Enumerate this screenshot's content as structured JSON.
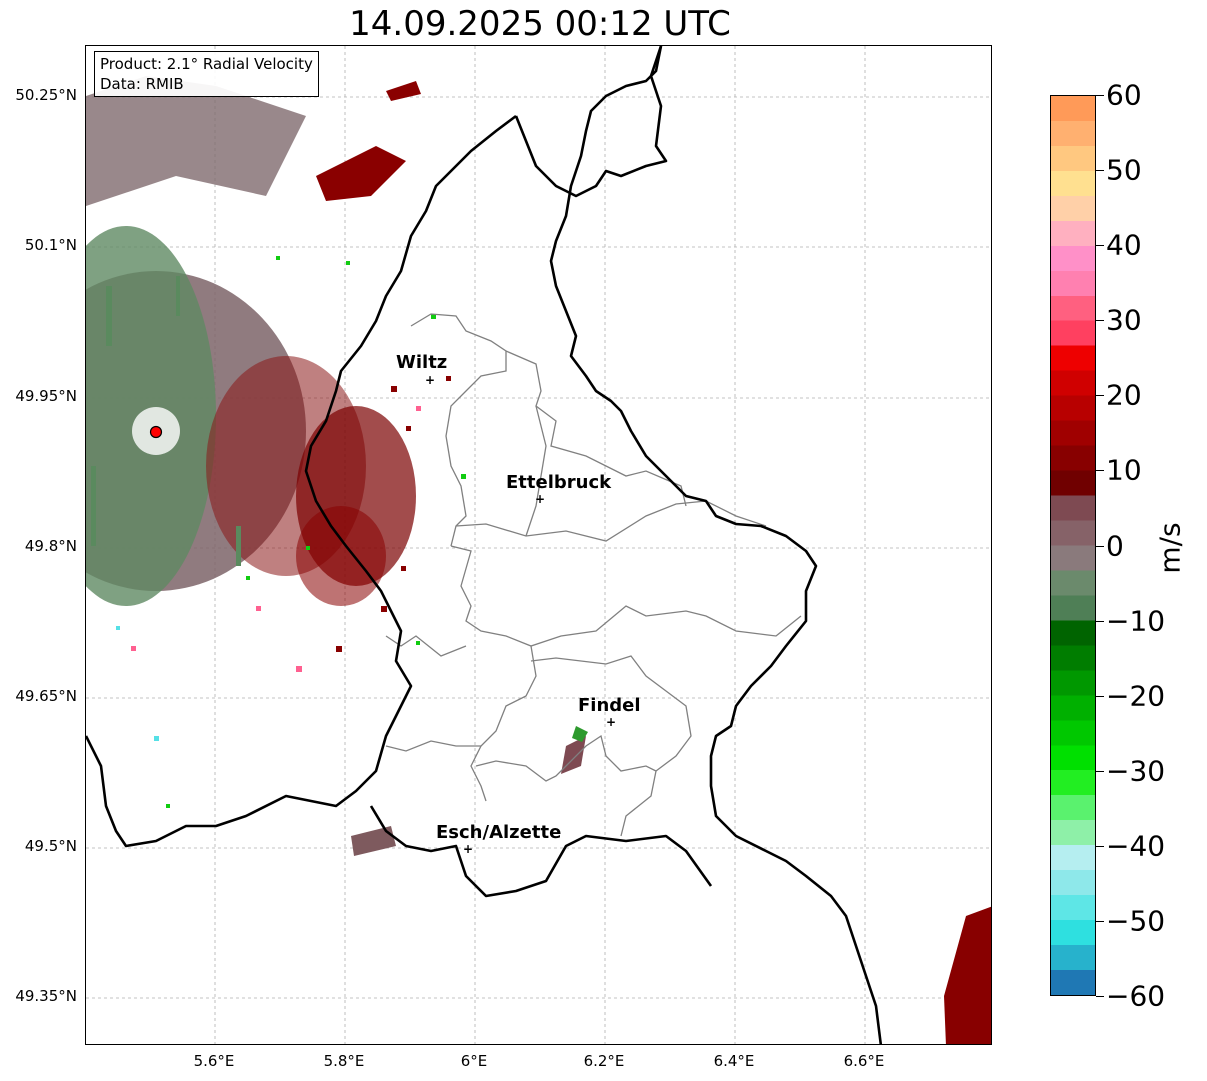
{
  "title": "14.09.2025 00:12 UTC",
  "info_box": {
    "product": "Product: 2.1° Radial Velocity",
    "data": "Data: RMIB"
  },
  "axes": {
    "lat_labels": [
      "50.25°N",
      "50.1°N",
      "49.95°N",
      "49.8°N",
      "49.65°N",
      "49.5°N",
      "49.35°N"
    ],
    "lon_labels": [
      "5.6°E",
      "5.8°E",
      "6°E",
      "6.2°E",
      "6.4°E",
      "6.6°E"
    ]
  },
  "cities": [
    {
      "name": "Wiltz"
    },
    {
      "name": "Ettelbruck"
    },
    {
      "name": "Findel"
    },
    {
      "name": "Esch/Alzette"
    }
  ],
  "colorbar": {
    "unit": "m/s",
    "ticks": [
      "60",
      "50",
      "40",
      "30",
      "20",
      "10",
      "0",
      "−10",
      "−20",
      "−30",
      "−40",
      "−50",
      "−60"
    ],
    "range": [
      -60,
      60
    ],
    "colors": [
      "#1f78b4",
      "#27b2cc",
      "#2ee0e0",
      "#5ee6e6",
      "#8ee8ea",
      "#b5eef0",
      "#8ef0a8",
      "#5af26e",
      "#22ee22",
      "#00e000",
      "#00c800",
      "#00b000",
      "#009800",
      "#007d00",
      "#006400",
      "#4f7f56",
      "#6b8a6c",
      "#8a7a7c",
      "#866268",
      "#7e4a52",
      "#700000",
      "#880000",
      "#a00000",
      "#b80000",
      "#d00000",
      "#ee0000",
      "#ff4060",
      "#ff6080",
      "#ff80b0",
      "#ff90c8",
      "#ffb0c0",
      "#ffd0a8",
      "#ffe090",
      "#ffc880",
      "#ffb070",
      "#ff9a58"
    ]
  },
  "radar_marker_color": "#ff0000"
}
